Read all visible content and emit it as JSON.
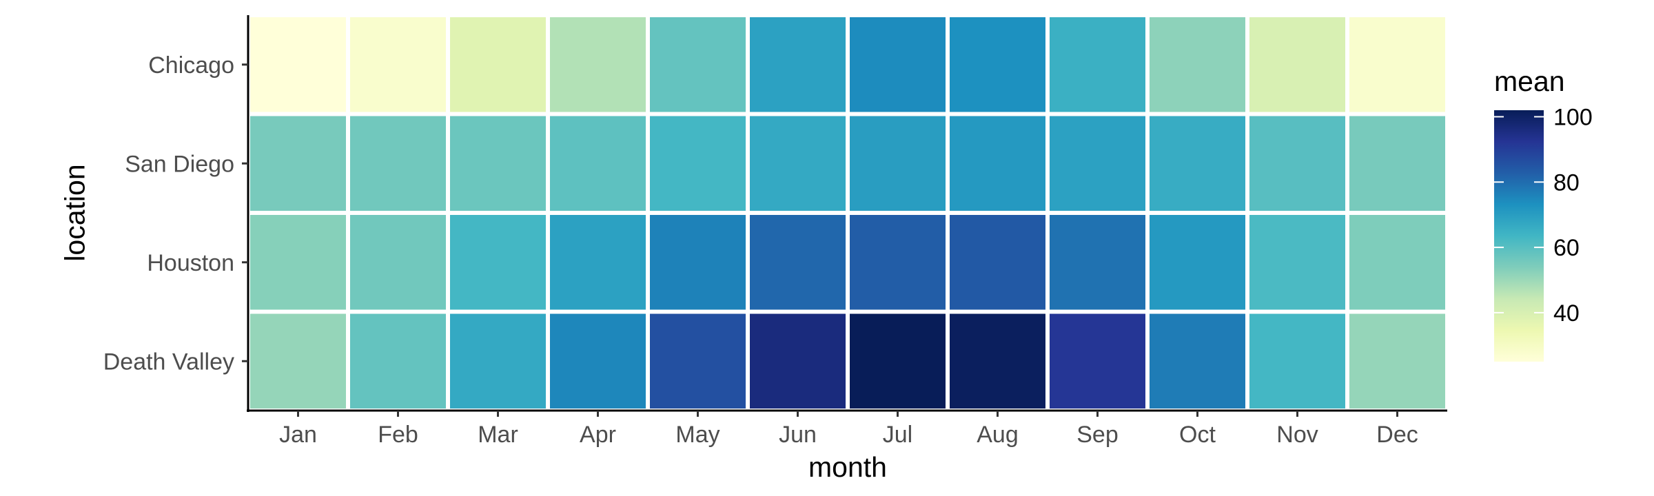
{
  "chart_data": {
    "type": "heatmap",
    "title": "",
    "xlabel": "month",
    "ylabel": "location",
    "x": [
      "Jan",
      "Feb",
      "Mar",
      "Apr",
      "May",
      "Jun",
      "Jul",
      "Aug",
      "Sep",
      "Oct",
      "Nov",
      "Dec"
    ],
    "y": [
      "Chicago",
      "San Diego",
      "Houston",
      "Death Valley"
    ],
    "values": [
      [
        25,
        28,
        38,
        47,
        58,
        69,
        74,
        73,
        65,
        52,
        40,
        28
      ],
      [
        55,
        56,
        57,
        59,
        63,
        67,
        70,
        71,
        69,
        66,
        60,
        55
      ],
      [
        53,
        56,
        63,
        69,
        76,
        81,
        83,
        84,
        79,
        71,
        62,
        54
      ],
      [
        51,
        58,
        67,
        75,
        86,
        96,
        102,
        101,
        92,
        77,
        63,
        51
      ]
    ],
    "colorbar": {
      "title": "mean",
      "ticks": [
        40,
        60,
        80,
        100
      ],
      "range": [
        25,
        102
      ],
      "colors": [
        "#ffffd9",
        "#edf8b1",
        "#c7e9b4",
        "#7fcdbb",
        "#41b6c4",
        "#1d91c0",
        "#225ea8",
        "#253494",
        "#081d58"
      ]
    },
    "legend_position": "right",
    "grid": false
  }
}
